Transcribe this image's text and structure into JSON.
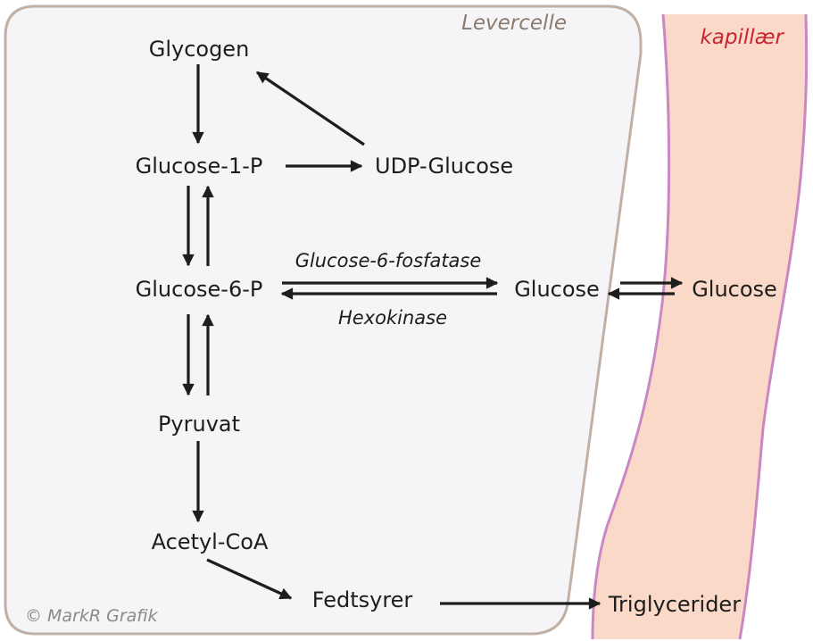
{
  "regions": {
    "liver_cell": "Levercelle",
    "capillary": "kapillær"
  },
  "nodes": {
    "glycogen": "Glycogen",
    "glucose_1_p": "Glucose-1-P",
    "udp_glucose": "UDP-Glucose",
    "glucose_6_p": "Glucose-6-P",
    "glucose_cell": "Glucose",
    "glucose_blood": "Glucose",
    "pyruvat": "Pyruvat",
    "acetyl_coa": "Acetyl-CoA",
    "fedtsyrer": "Fedtsyrer",
    "triglycerider": "Triglycerider"
  },
  "enzymes": {
    "forward": "Glucose-6-fosfatase",
    "reverse": "Hexokinase"
  },
  "credit": "© MarkR Grafik",
  "colors": {
    "cell_fill": "#f5f5f7",
    "cell_border": "#c0b0a5",
    "region_label": "#8c7b6e",
    "capillary_fill": "#fbd9c9",
    "capillary_border": "#c888c4",
    "capillary_label": "#c8252f",
    "arrow": "#1d1d1b",
    "credit": "#8a8a8a"
  }
}
